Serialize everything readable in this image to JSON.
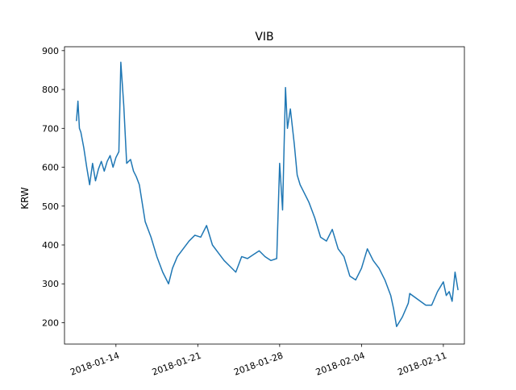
{
  "chart_data": {
    "type": "line",
    "title": "VIB",
    "xlabel": "",
    "ylabel": "KRW",
    "x_ticks": [
      "2018-01-14",
      "2018-01-21",
      "2018-01-28",
      "2018-02-04",
      "2018-02-11"
    ],
    "y_ticks": [
      200,
      300,
      400,
      500,
      600,
      700,
      800,
      900
    ],
    "xlim": [
      "2018-01-09 14:24",
      "2018-02-12 19:12"
    ],
    "ylim": [
      145,
      910
    ],
    "grid": false,
    "legend": "none",
    "color": "#1f77b4",
    "series": [
      {
        "x": [
          "2018-01-10 15:00",
          "2018-01-10 18:00",
          "2018-01-10 21:00",
          "2018-01-11 00:00",
          "2018-01-11 06:00",
          "2018-01-11 12:00",
          "2018-01-11 18:00",
          "2018-01-12 00:00",
          "2018-01-12 06:00",
          "2018-01-12 12:00",
          "2018-01-12 18:00",
          "2018-01-13 00:00",
          "2018-01-13 06:00",
          "2018-01-13 12:00",
          "2018-01-13 18:00",
          "2018-01-14 00:00",
          "2018-01-14 06:00",
          "2018-01-14 10:00",
          "2018-01-14 16:00",
          "2018-01-14 22:00",
          "2018-01-15 06:00",
          "2018-01-15 12:00",
          "2018-01-15 18:00",
          "2018-01-16 00:00",
          "2018-01-16 12:00",
          "2018-01-17 00:00",
          "2018-01-17 12:00",
          "2018-01-18 00:00",
          "2018-01-18 12:00",
          "2018-01-18 20:00",
          "2018-01-19 06:00",
          "2018-01-19 18:00",
          "2018-01-20 06:00",
          "2018-01-20 18:00",
          "2018-01-21 06:00",
          "2018-01-21 18:00",
          "2018-01-22 06:00",
          "2018-01-22 18:00",
          "2018-01-23 06:00",
          "2018-01-23 18:00",
          "2018-01-24 06:00",
          "2018-01-24 18:00",
          "2018-01-25 06:00",
          "2018-01-25 18:00",
          "2018-01-26 06:00",
          "2018-01-26 18:00",
          "2018-01-27 06:00",
          "2018-01-27 18:00",
          "2018-01-28 00:00",
          "2018-01-28 06:00",
          "2018-01-28 12:00",
          "2018-01-28 16:00",
          "2018-01-28 22:00",
          "2018-01-29 06:00",
          "2018-01-29 12:00",
          "2018-01-29 18:00",
          "2018-01-30 00:00",
          "2018-01-30 12:00",
          "2018-01-31 00:00",
          "2018-01-31 12:00",
          "2018-02-01 00:00",
          "2018-02-01 12:00",
          "2018-02-02 00:00",
          "2018-02-02 12:00",
          "2018-02-03 00:00",
          "2018-02-03 12:00",
          "2018-02-04 00:00",
          "2018-02-04 12:00",
          "2018-02-05 00:00",
          "2018-02-05 12:00",
          "2018-02-06 00:00",
          "2018-02-06 12:00",
          "2018-02-06 18:00",
          "2018-02-07 00:00",
          "2018-02-07 12:00",
          "2018-02-08 00:00",
          "2018-02-08 03:00",
          "2018-02-09 12:00",
          "2018-02-10 00:00",
          "2018-02-10 12:00",
          "2018-02-11 00:00",
          "2018-02-11 06:00",
          "2018-02-11 12:00",
          "2018-02-11 18:00",
          "2018-02-12 00:00",
          "2018-02-12 06:00"
        ],
        "values": [
          720,
          770,
          700,
          690,
          650,
          600,
          555,
          610,
          565,
          595,
          615,
          590,
          615,
          630,
          600,
          625,
          640,
          870,
          760,
          610,
          620,
          590,
          575,
          555,
          460,
          420,
          370,
          330,
          300,
          340,
          370,
          390,
          410,
          425,
          420,
          450,
          400,
          380,
          360,
          345,
          330,
          370,
          365,
          375,
          385,
          370,
          360,
          365,
          610,
          490,
          805,
          700,
          750,
          660,
          580,
          555,
          540,
          510,
          470,
          420,
          410,
          440,
          390,
          370,
          320,
          310,
          340,
          390,
          360,
          340,
          310,
          270,
          235,
          190,
          215,
          250,
          275,
          245,
          245,
          280,
          305,
          270,
          280,
          255,
          330,
          285
        ]
      }
    ]
  }
}
